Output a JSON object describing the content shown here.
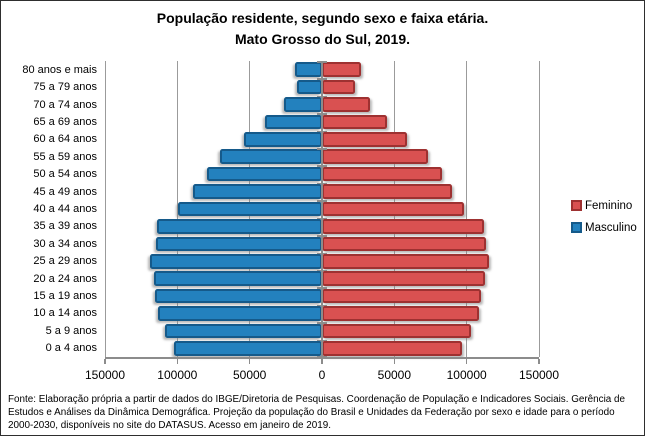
{
  "title": {
    "line1": "População residente, segundo sexo e faixa etária.",
    "line2": "Mato Grosso do Sul, 2019."
  },
  "footer": "Fonte:  Elaboração própria a partir de dados do  IBGE/Diretoria de Pesquisas. Coordenação de População e Indicadores Sociais. Gerência de Estudos e Análises da Dinâmica Demográfica. Projeção da população do Brasil e Unidades da Federação por sexo e idade para o período 2000-2030, disponíveis no site do DATASUS. Acesso em  janeiro de 2019.",
  "colors": {
    "feminino_fill": "#D95151",
    "feminino_border": "#9E3131",
    "masculino_fill": "#2381BE",
    "masculino_border": "#155A8A",
    "gridline": "#9B9B9B",
    "axis": "#8C8C8C",
    "text": "#000000",
    "figure_border": "#2E2E2E"
  },
  "chart_data": {
    "type": "bar",
    "subtype": "population-pyramid",
    "orientation": "horizontal",
    "title": "População residente, segundo sexo e faixa etária. Mato Grosso do Sul, 2019.",
    "categories": [
      "80 anos e mais",
      "75 a 79 anos",
      "70 a 74 anos",
      "65 a 69 anos",
      "60 a 64 anos",
      "55 a 59 anos",
      "50 a 54 anos",
      "45 a 49 anos",
      "40 a 44 anos",
      "35 a 39 anos",
      "30 a 34 anos",
      "25 a 29 anos",
      "20 a 24 anos",
      "15 a 19 anos",
      "10 a 14 anos",
      "5 a 9 anos",
      "0 a 4 anos"
    ],
    "series": [
      {
        "name": "Feminino",
        "side": "right",
        "color": "#D95151",
        "border_color": "#9E3131",
        "values": [
          26900,
          22700,
          33500,
          44700,
          58600,
          73200,
          82900,
          89800,
          98300,
          111800,
          113600,
          115700,
          112500,
          110100,
          108300,
          103200,
          96800
        ]
      },
      {
        "name": "Masculino",
        "side": "left",
        "color": "#2381BE",
        "border_color": "#155A8A",
        "values": [
          19000,
          17500,
          26500,
          39700,
          53900,
          70600,
          79600,
          89300,
          99300,
          114100,
          114800,
          118900,
          115900,
          115500,
          113500,
          108700,
          102500
        ]
      }
    ],
    "x_axis": {
      "min": -150000,
      "max": 150000,
      "tick_interval": 50000,
      "tick_labels": [
        "150000",
        "100000",
        "50000",
        "0",
        "50000",
        "100000",
        "150000"
      ]
    },
    "grid": true,
    "legend_position": "right"
  }
}
